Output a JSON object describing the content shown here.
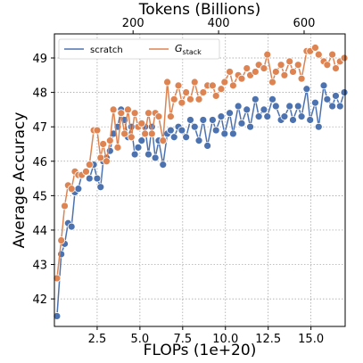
{
  "chart_data": {
    "type": "line",
    "xlabel": "FLOPs (1e+20)",
    "x2label": "Tokens (Billions)",
    "ylabel": "Average Accuracy",
    "xlim": [
      0,
      17
    ],
    "ylim": [
      41.2,
      49.7
    ],
    "x_ticks": [
      2.5,
      5.0,
      7.5,
      10.0,
      12.5,
      15.0
    ],
    "x_tick_labels": [
      "2.5",
      "5.0",
      "7.5",
      "10.0",
      "12.5",
      "15.0"
    ],
    "y_ticks": [
      42,
      43,
      44,
      45,
      46,
      47,
      48,
      49
    ],
    "y_tick_labels": [
      "42",
      "43",
      "44",
      "45",
      "46",
      "47",
      "48",
      "49"
    ],
    "x2_ticks": [
      4.6,
      9.6,
      14.6
    ],
    "x2_tick_labels": [
      "200",
      "400",
      "600"
    ],
    "grid": true,
    "legend_position": "top-left",
    "series": [
      {
        "name": "scratch",
        "color": "#4c72b0",
        "x": [
          0.15,
          0.4,
          0.6,
          0.8,
          1.0,
          1.2,
          1.4,
          1.6,
          1.85,
          2.05,
          2.3,
          2.5,
          2.7,
          2.85,
          3.05,
          3.25,
          3.45,
          3.7,
          3.9,
          4.1,
          4.3,
          4.5,
          4.7,
          4.9,
          5.1,
          5.3,
          5.5,
          5.7,
          5.9,
          6.1,
          6.35,
          6.6,
          6.8,
          7.0,
          7.25,
          7.45,
          7.7,
          7.95,
          8.2,
          8.45,
          8.7,
          8.95,
          9.25,
          9.45,
          9.75,
          9.95,
          10.25,
          10.45,
          10.75,
          10.95,
          11.25,
          11.45,
          11.75,
          11.95,
          12.25,
          12.45,
          12.75,
          12.95,
          13.25,
          13.45,
          13.75,
          13.95,
          14.25,
          14.45,
          14.75,
          14.95,
          15.25,
          15.45,
          15.75,
          15.95,
          16.25,
          16.45,
          16.7,
          16.95
        ],
        "values": [
          41.5,
          43.3,
          43.6,
          44.2,
          44.1,
          45.1,
          45.2,
          45.6,
          45.7,
          45.5,
          45.9,
          45.5,
          45.25,
          46.0,
          46.1,
          46.3,
          46.8,
          47.0,
          47.5,
          47.2,
          46.7,
          47.0,
          46.2,
          46.4,
          46.6,
          47.0,
          46.2,
          47.0,
          46.1,
          46.6,
          45.9,
          46.8,
          46.9,
          46.7,
          47.0,
          46.9,
          46.7,
          47.2,
          47.0,
          46.6,
          47.2,
          46.45,
          47.2,
          46.9,
          47.3,
          46.8,
          47.4,
          46.8,
          47.6,
          47.1,
          47.5,
          47.0,
          47.8,
          47.3,
          47.5,
          47.3,
          47.8,
          47.6,
          47.2,
          47.3,
          47.6,
          47.2,
          47.6,
          47.3,
          48.1,
          47.2,
          47.7,
          47.0,
          48.2,
          47.8,
          47.6,
          47.9,
          47.6,
          48.0
        ]
      },
      {
        "name": "G_stack",
        "color": "#dd8452",
        "x": [
          0.15,
          0.4,
          0.6,
          0.8,
          1.0,
          1.2,
          1.4,
          1.6,
          1.85,
          2.05,
          2.3,
          2.5,
          2.7,
          2.85,
          3.05,
          3.25,
          3.45,
          3.7,
          3.9,
          4.1,
          4.3,
          4.5,
          4.7,
          4.9,
          5.1,
          5.3,
          5.5,
          5.7,
          5.9,
          6.1,
          6.35,
          6.6,
          6.8,
          7.0,
          7.25,
          7.45,
          7.7,
          7.95,
          8.2,
          8.45,
          8.7,
          8.95,
          9.25,
          9.45,
          9.75,
          9.95,
          10.25,
          10.45,
          10.75,
          10.95,
          11.25,
          11.45,
          11.75,
          11.95,
          12.25,
          12.45,
          12.75,
          12.95,
          13.25,
          13.45,
          13.75,
          13.95,
          14.25,
          14.45,
          14.75,
          14.95,
          15.25,
          15.45,
          15.75,
          15.95,
          16.25,
          16.45,
          16.7,
          16.95
        ],
        "values": [
          42.6,
          43.7,
          44.7,
          45.3,
          45.2,
          45.7,
          45.6,
          45.6,
          45.7,
          45.9,
          46.9,
          46.9,
          46.1,
          46.5,
          46.0,
          46.6,
          47.5,
          46.4,
          47.4,
          46.8,
          47.5,
          46.7,
          47.4,
          47.0,
          47.1,
          46.8,
          47.4,
          46.8,
          47.4,
          47.3,
          46.6,
          48.3,
          47.3,
          47.8,
          48.2,
          47.7,
          48.0,
          47.8,
          48.3,
          47.8,
          48.0,
          48.2,
          48.2,
          47.9,
          48.1,
          48.3,
          48.6,
          48.2,
          48.5,
          48.4,
          48.7,
          48.5,
          48.6,
          48.8,
          48.7,
          49.1,
          48.3,
          48.6,
          48.8,
          48.5,
          48.9,
          48.6,
          48.8,
          48.4,
          49.2,
          49.2,
          49.3,
          49.1,
          48.9,
          48.8,
          49.1,
          48.7,
          48.9,
          49.0
        ]
      }
    ]
  }
}
